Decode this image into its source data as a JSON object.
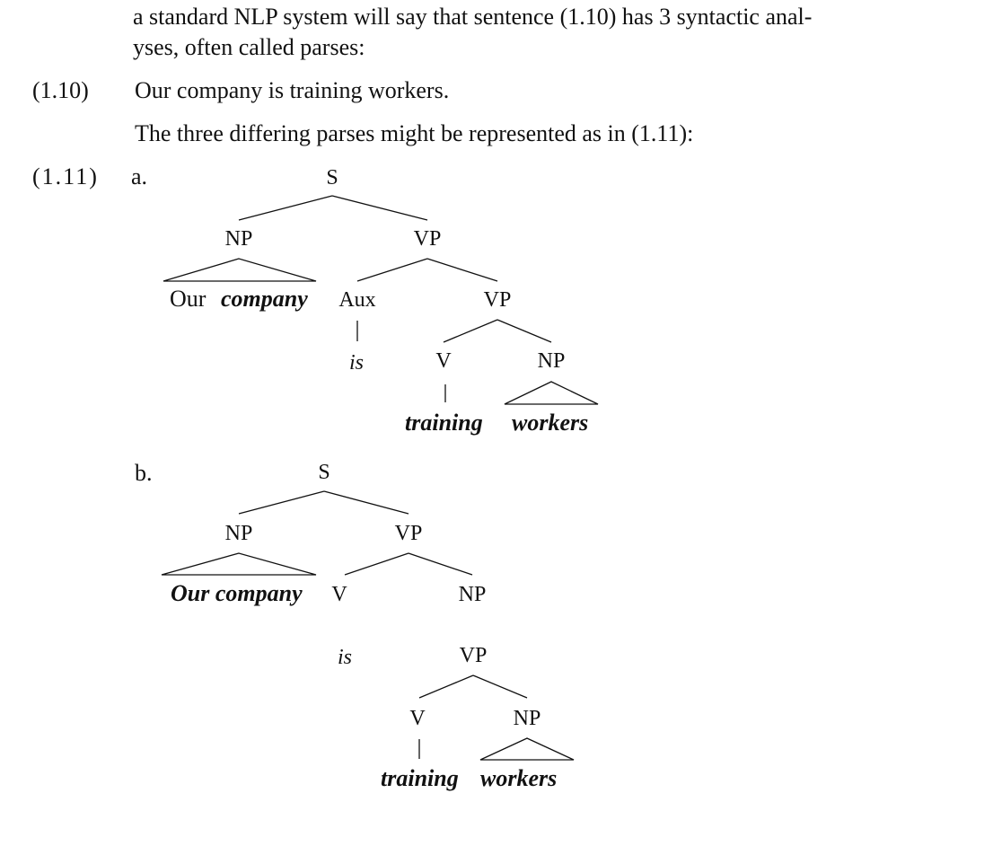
{
  "intro": {
    "line1": "a standard NLP system will say that sentence (1.10) has 3 syntactic anal-",
    "line2": "yses, often called parses:"
  },
  "example_1_10": {
    "number": "(1.10)",
    "sentence": "Our company is training workers."
  },
  "lead_in": "The three differing parses might be represented as in (1.11):",
  "example_1_11": {
    "number": "(1.11)",
    "parse_a": {
      "letter": "a.",
      "labels": {
        "S": "S",
        "NP": "NP",
        "VP": "VP",
        "Aux": "Aux",
        "VP2": "VP",
        "V": "V",
        "NP2": "NP"
      },
      "words": {
        "our": "Our",
        "company": "company",
        "is": "is",
        "training": "training",
        "workers": "workers"
      }
    },
    "parse_b": {
      "letter": "b.",
      "labels": {
        "S": "S",
        "NP": "NP",
        "VP": "VP",
        "V": "V",
        "NP2": "NP",
        "VP2": "VP",
        "V2": "V",
        "NP3": "NP"
      },
      "words": {
        "our_company": "Our company",
        "is": "is",
        "training": "training",
        "workers": "workers"
      }
    }
  }
}
